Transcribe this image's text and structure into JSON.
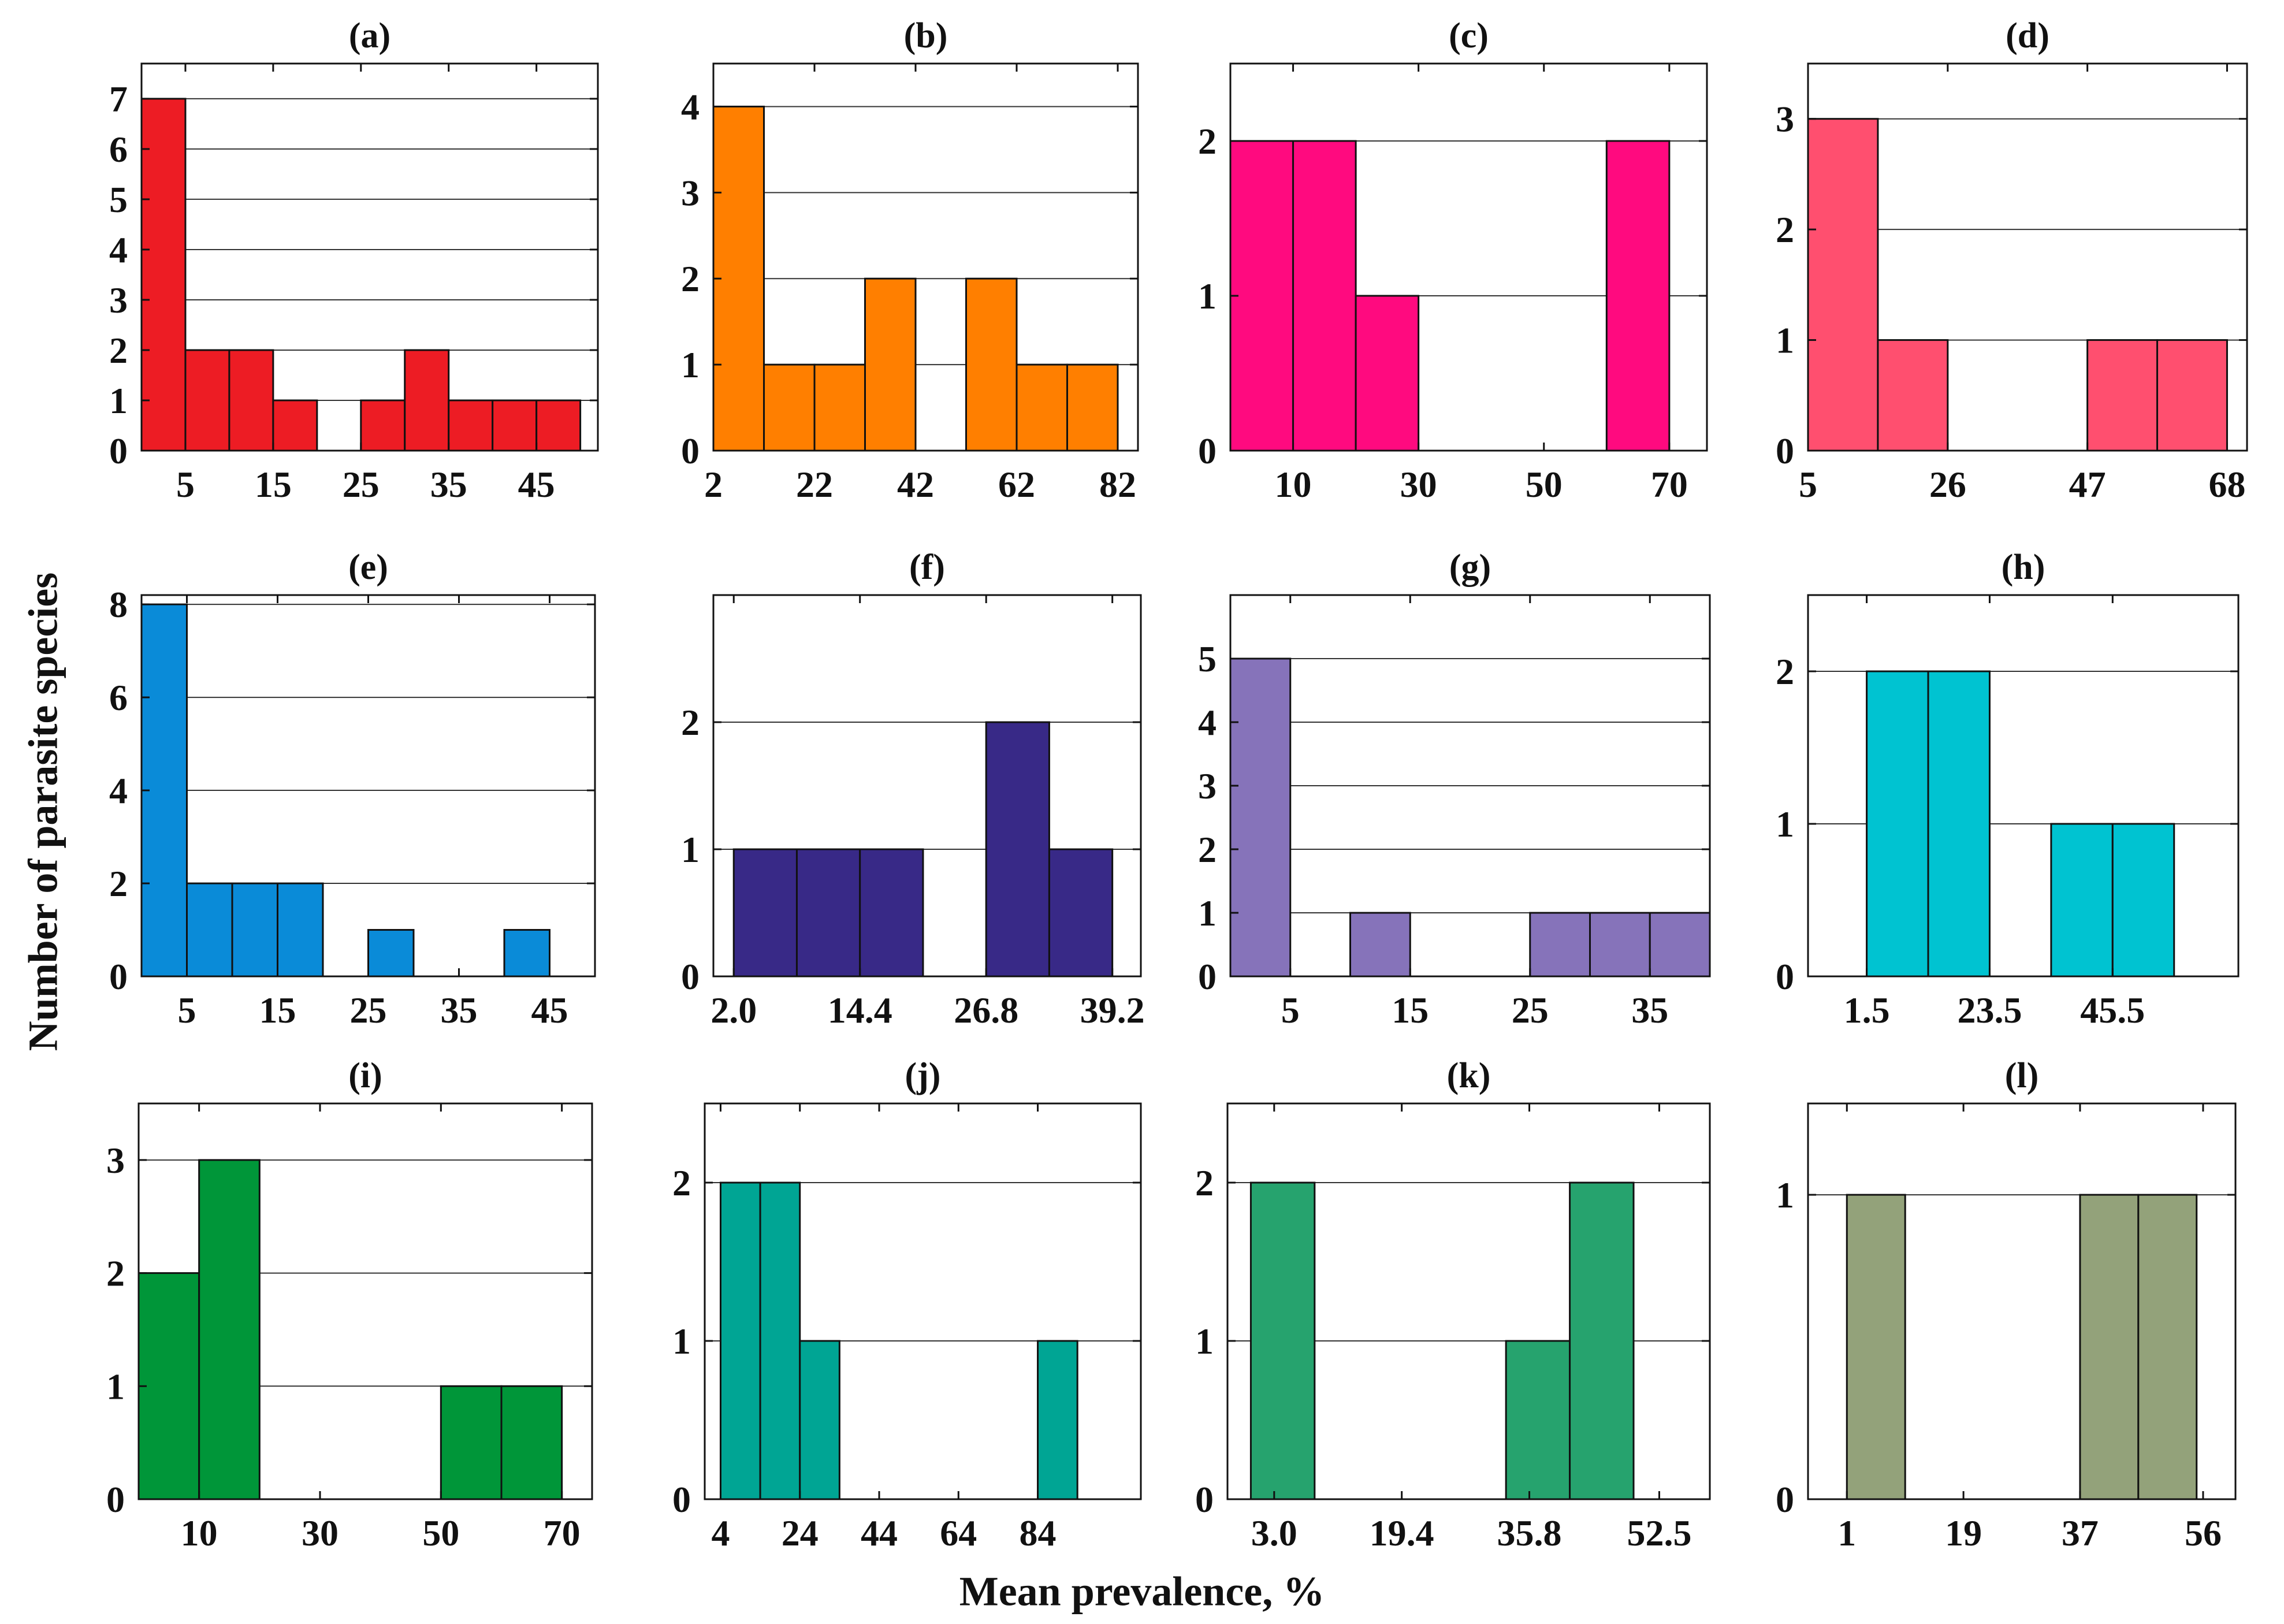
{
  "figure": {
    "ylabel": "Number of parasite species",
    "xlabel": "Mean prevalence, %"
  },
  "chart_data": [
    {
      "type": "bar",
      "title": "(a)",
      "color": "#ED1C24",
      "ylim": [
        0,
        7.7
      ],
      "yticks": [
        0,
        1,
        2,
        3,
        4,
        5,
        6,
        7
      ],
      "grid": true,
      "categories": [
        "0-5",
        "5-10",
        "10-15",
        "15-20",
        "20-25",
        "25-30",
        "30-35",
        "35-40",
        "40-45",
        "45-50"
      ],
      "values": [
        7,
        2,
        2,
        1,
        0,
        1,
        2,
        1,
        1,
        1
      ],
      "xlim": [
        0,
        52
      ],
      "xticks": [
        {
          "label": "5",
          "pos": 5
        },
        {
          "label": "15",
          "pos": 15
        },
        {
          "label": "25",
          "pos": 25
        },
        {
          "label": "35",
          "pos": 35
        },
        {
          "label": "45",
          "pos": 45
        }
      ]
    },
    {
      "type": "bar",
      "title": "(b)",
      "color": "#FF7F00",
      "ylim": [
        0,
        4.5
      ],
      "yticks": [
        0,
        1,
        2,
        3,
        4
      ],
      "grid": true,
      "categories": [
        "2-12",
        "12-22",
        "22-32",
        "32-42",
        "42-52",
        "52-62",
        "62-72",
        "72-82"
      ],
      "values": [
        4,
        1,
        1,
        2,
        0,
        2,
        1,
        1
      ],
      "xlim": [
        2,
        86
      ],
      "xticks": [
        {
          "label": "2",
          "pos": 2
        },
        {
          "label": "22",
          "pos": 22
        },
        {
          "label": "42",
          "pos": 42
        },
        {
          "label": "62",
          "pos": 62
        },
        {
          "label": "82",
          "pos": 82
        }
      ]
    },
    {
      "type": "bar",
      "title": "(c)",
      "color": "#FF0A7F",
      "ylim": [
        0,
        2.5
      ],
      "yticks": [
        0,
        1,
        2
      ],
      "grid": true,
      "categories": [
        "0-10",
        "10-20",
        "20-30",
        "30-40",
        "40-50",
        "50-60",
        "60-70"
      ],
      "values": [
        2,
        2,
        1,
        0,
        0,
        0,
        2
      ],
      "xlim": [
        0,
        76
      ],
      "xticks": [
        {
          "label": "10",
          "pos": 10
        },
        {
          "label": "30",
          "pos": 30
        },
        {
          "label": "50",
          "pos": 50
        },
        {
          "label": "70",
          "pos": 70
        }
      ]
    },
    {
      "type": "bar",
      "title": "(d)",
      "color": "#FF4F6F",
      "ylim": [
        0,
        3.5
      ],
      "yticks": [
        0,
        1,
        2,
        3
      ],
      "grid": true,
      "categories": [
        "5-15.5",
        "15.5-26",
        "26-36.5",
        "36.5-47",
        "47-57.5",
        "57.5-68"
      ],
      "values": [
        3,
        1,
        0,
        0,
        1,
        1
      ],
      "xlim": [
        5,
        71
      ],
      "xticks": [
        {
          "label": "5",
          "pos": 5
        },
        {
          "label": "26",
          "pos": 26
        },
        {
          "label": "47",
          "pos": 47
        },
        {
          "label": "68",
          "pos": 68
        }
      ]
    },
    {
      "type": "bar",
      "title": "(e)",
      "color": "#0A8BD8",
      "ylim": [
        0,
        8.2
      ],
      "yticks": [
        0,
        2,
        4,
        6,
        8
      ],
      "grid": true,
      "categories": [
        "0-5",
        "5-10",
        "10-15",
        "15-20",
        "20-25",
        "25-30",
        "30-35",
        "35-40",
        "40-45",
        "45-50"
      ],
      "values": [
        8,
        2,
        2,
        2,
        0,
        1,
        0,
        0,
        1,
        0
      ],
      "xlim": [
        0,
        50
      ],
      "xticks": [
        {
          "label": "5",
          "pos": 5
        },
        {
          "label": "15",
          "pos": 15
        },
        {
          "label": "25",
          "pos": 25
        },
        {
          "label": "35",
          "pos": 35
        },
        {
          "label": "45",
          "pos": 45
        }
      ]
    },
    {
      "type": "bar",
      "title": "(f)",
      "color": "#382987",
      "ylim": [
        0,
        3
      ],
      "yticks": [
        0,
        1,
        2
      ],
      "grid": true,
      "categories": [
        "2.0-8.2",
        "8.2-14.4",
        "14.4-20.6",
        "20.6-26.8",
        "26.8-33.0",
        "33.0-39.2"
      ],
      "values": [
        1,
        1,
        1,
        0,
        2,
        1
      ],
      "xlim": [
        0,
        42
      ],
      "xticks": [
        {
          "label": "2.0",
          "pos": 2.0
        },
        {
          "label": "14.4",
          "pos": 14.4
        },
        {
          "label": "26.8",
          "pos": 26.8
        },
        {
          "label": "39.2",
          "pos": 39.2
        }
      ]
    },
    {
      "type": "bar",
      "title": "(g)",
      "color": "#8673BA",
      "ylim": [
        0,
        6
      ],
      "yticks": [
        0,
        1,
        2,
        3,
        4,
        5
      ],
      "grid": true,
      "categories": [
        "0-5",
        "5-10",
        "10-15",
        "15-20",
        "20-25",
        "25-30",
        "30-35",
        "35-40"
      ],
      "values": [
        5,
        0,
        1,
        0,
        0,
        1,
        1,
        1
      ],
      "xlim": [
        0,
        40
      ],
      "xticks": [
        {
          "label": "5",
          "pos": 5
        },
        {
          "label": "15",
          "pos": 15
        },
        {
          "label": "25",
          "pos": 25
        },
        {
          "label": "35",
          "pos": 35
        }
      ]
    },
    {
      "type": "bar",
      "title": "(h)",
      "color": "#00C3D1",
      "ylim": [
        0,
        2.5
      ],
      "yticks": [
        0,
        1,
        2
      ],
      "grid": true,
      "categories": [
        "1.5-12.5",
        "12.5-23.5",
        "23.5-34.5",
        "34.5-45.5",
        "45.5-56.5"
      ],
      "values": [
        2,
        2,
        0,
        1,
        1
      ],
      "xlim": [
        -9,
        68
      ],
      "xticks": [
        {
          "label": "1.5",
          "pos": 1.5
        },
        {
          "label": "23.5",
          "pos": 23.5
        },
        {
          "label": "45.5",
          "pos": 45.5
        }
      ]
    },
    {
      "type": "bar",
      "title": "(i)",
      "color": "#009639",
      "ylim": [
        0,
        3.5
      ],
      "yticks": [
        0,
        1,
        2,
        3
      ],
      "grid": true,
      "categories": [
        "0-10",
        "10-20",
        "20-30",
        "30-40",
        "40-50",
        "50-60",
        "60-70"
      ],
      "values": [
        2,
        3,
        0,
        0,
        0,
        1,
        1
      ],
      "xlim": [
        0,
        75
      ],
      "xticks": [
        {
          "label": "10",
          "pos": 10
        },
        {
          "label": "30",
          "pos": 30
        },
        {
          "label": "50",
          "pos": 50
        },
        {
          "label": "70",
          "pos": 70
        }
      ]
    },
    {
      "type": "bar",
      "title": "(j)",
      "color": "#00A594",
      "ylim": [
        0,
        2.5
      ],
      "yticks": [
        0,
        1,
        2
      ],
      "grid": true,
      "categories": [
        "4-14",
        "14-24",
        "24-34",
        "34-44",
        "44-54",
        "54-64",
        "64-74",
        "74-84",
        "84-94"
      ],
      "values": [
        2,
        2,
        1,
        0,
        0,
        0,
        0,
        0,
        1
      ],
      "xlim": [
        0,
        110
      ],
      "xticks": [
        {
          "label": "4",
          "pos": 4
        },
        {
          "label": "24",
          "pos": 24
        },
        {
          "label": "44",
          "pos": 44
        },
        {
          "label": "64",
          "pos": 64
        },
        {
          "label": "84",
          "pos": 84
        }
      ]
    },
    {
      "type": "bar",
      "title": "(k)",
      "color": "#26A36E",
      "ylim": [
        0,
        2.5
      ],
      "yticks": [
        0,
        1,
        2
      ],
      "grid": true,
      "categories": [
        "0-8.2",
        "8.2-16.4",
        "16.4-24.6",
        "24.6-32.8",
        "32.8-41.0",
        "41.0-49.2",
        "49.2-57.4"
      ],
      "values": [
        2,
        0,
        0,
        0,
        1,
        2,
        0
      ],
      "xlim": [
        -3,
        59
      ],
      "xticks": [
        {
          "label": "3.0",
          "pos": 3.0
        },
        {
          "label": "19.4",
          "pos": 19.4
        },
        {
          "label": "35.8",
          "pos": 35.8
        },
        {
          "label": "52.5",
          "pos": 52.5
        }
      ]
    },
    {
      "type": "bar",
      "title": "(l)",
      "color": "#93A27A",
      "ylim": [
        0,
        1.3
      ],
      "yticks": [
        0,
        1
      ],
      "grid": true,
      "categories": [
        "1-10",
        "10-19",
        "19-28",
        "28-37",
        "37-46",
        "46-55"
      ],
      "values": [
        1,
        0,
        0,
        0,
        1,
        1
      ],
      "xlim": [
        -5,
        61
      ],
      "xticks": [
        {
          "label": "1",
          "pos": 1
        },
        {
          "label": "19",
          "pos": 19
        },
        {
          "label": "37",
          "pos": 37
        },
        {
          "label": "56",
          "pos": 56
        }
      ]
    }
  ]
}
